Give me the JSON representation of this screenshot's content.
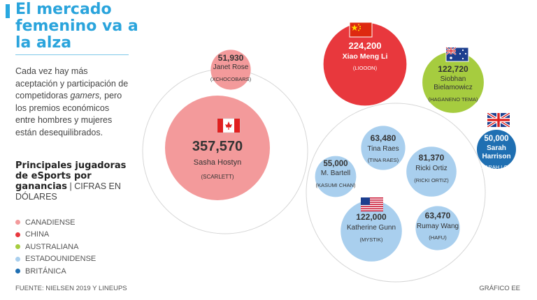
{
  "title": "El mercado femenino va a la alza",
  "intro": {
    "before": "Cada vez hay más aceptación y participación de competidoras ",
    "emphasis": "gamers,",
    "after": " pero los premios económicos entre hombres y mujeres están desequilibrados."
  },
  "subtitle": {
    "bold": "Principales jugadoras de eSports por ganancias",
    "separator": " | ",
    "normal": "CIFRAS EN DÓLARES"
  },
  "legend": [
    {
      "label": "CANADIENSE",
      "color": "#f39a9b"
    },
    {
      "label": "CHINA",
      "color": "#e8383d"
    },
    {
      "label": "AUSTRALIANA",
      "color": "#a6cc3f"
    },
    {
      "label": "ESTADOUNIDENSE",
      "color": "#a9cfee"
    },
    {
      "label": "BRITÁNICA",
      "color": "#1f6fb2"
    }
  ],
  "footer": {
    "source": "FUENTE: NIELSEN 2019 Y LINEUPS",
    "credit": "GRÁFICO EE"
  },
  "chart_data": {
    "type": "bubble",
    "unit": "USD",
    "players": [
      {
        "name": "Sasha Hostyn",
        "alias": "SCARLETT",
        "earnings": 357570,
        "earnings_label": "357,570",
        "country": "Canadá",
        "color": "#f39a9b",
        "flag": "canada-flag"
      },
      {
        "name": "Janet Rose",
        "alias": "XCHOCOBARS",
        "earnings": 51930,
        "earnings_label": "51,930",
        "country": "Canadá",
        "color": "#f39a9b"
      },
      {
        "name": "Xiao Meng Li",
        "alias": "LIOOON",
        "earnings": 224200,
        "earnings_label": "224,200",
        "country": "China",
        "color": "#e8383d",
        "flag": "china-flag"
      },
      {
        "name": "Siobhan Bielamowicz",
        "alias": "HAGANENO TEMA",
        "earnings": 122720,
        "earnings_label": "122,720",
        "country": "Australia",
        "color": "#a6cc3f",
        "flag": "australia-flag"
      },
      {
        "name": "Sarah Harrison",
        "alias": "SARAH LOU",
        "earnings": 50000,
        "earnings_label": "50,000",
        "country": "Reino Unido",
        "color": "#1f6fb2",
        "flag": "uk-flag"
      },
      {
        "name": "Tina Raes",
        "alias": "TINA RAES",
        "earnings": 63480,
        "earnings_label": "63,480",
        "country": "Estados Unidos",
        "color": "#a9cfee"
      },
      {
        "name": "M. Bartell",
        "alias": "KASUMI CHAN",
        "earnings": 55000,
        "earnings_label": "55,000",
        "country": "Estados Unidos",
        "color": "#a9cfee"
      },
      {
        "name": "Ricki Ortiz",
        "alias": "RICKI ORTIZ",
        "earnings": 81370,
        "earnings_label": "81,370",
        "country": "Estados Unidos",
        "color": "#a9cfee"
      },
      {
        "name": "Katherine Gunn",
        "alias": "MYSTIK",
        "earnings": 122000,
        "earnings_label": "122,000",
        "country": "Estados Unidos",
        "color": "#a9cfee",
        "flag": "usa-flag"
      },
      {
        "name": "Rumay Wang",
        "alias": "HAFU",
        "earnings": 63470,
        "earnings_label": "63,470",
        "country": "Estados Unidos",
        "color": "#a9cfee"
      }
    ]
  }
}
